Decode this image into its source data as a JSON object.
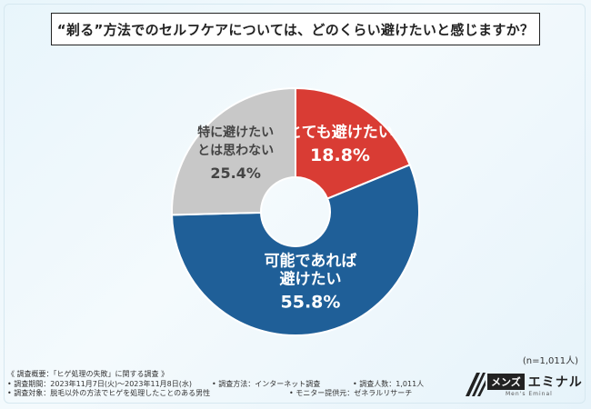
{
  "title": "“剃る”方法でのセルフケアについては、どのくらい避けたいと感じますか？",
  "chart_data": {
    "type": "pie",
    "donut": true,
    "slices": [
      {
        "label_lines": [
          "とても避けたい"
        ],
        "value": 18.8,
        "display": "18.8%",
        "color": "#d93c34"
      },
      {
        "label_lines": [
          "可能であれば",
          "避けたい"
        ],
        "value": 55.8,
        "display": "55.8%",
        "color": "#1f5f98"
      },
      {
        "label_lines": [
          "特に避けたい",
          "とは思わない"
        ],
        "value": 25.4,
        "display": "25.4%",
        "color": "#c8c8c8"
      }
    ]
  },
  "sample_size": "(n=1,011人)",
  "footer": {
    "line1": "《 調査概要：「ヒゲ処理の失敗」に関する調査 》",
    "period": "• 調査期間：2023年11月7日(火)〜2023年11月8日(水)",
    "method": "• 調査方法：インターネット調査",
    "count": "• 調査人数：1,011人",
    "target": "• 調査対象：脱毛以外の方法でヒゲを処理したことのある男性",
    "provider": "• モニター提供元：ゼネラルリサーチ"
  },
  "logo": {
    "mens": "メンズ",
    "eminal": "エミナル",
    "sub": "Men's Eminal"
  }
}
